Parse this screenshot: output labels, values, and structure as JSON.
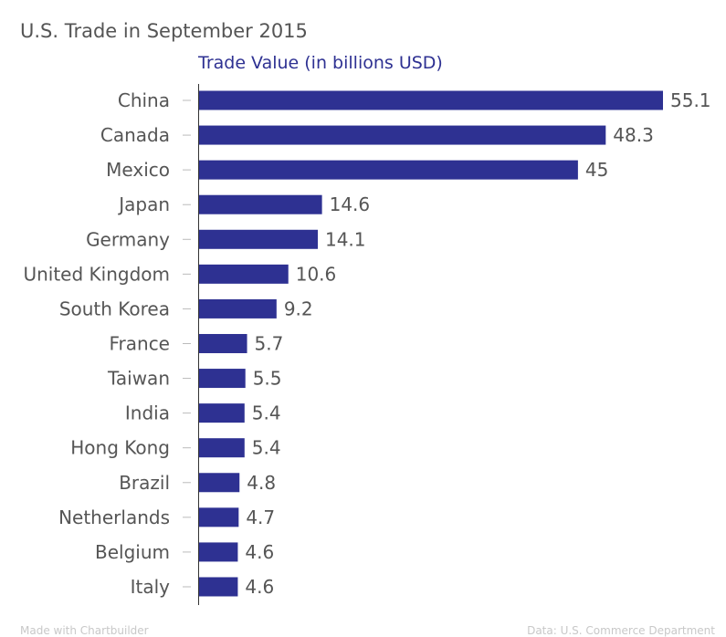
{
  "title": "U.S. Trade in September 2015",
  "subtitle": "Trade Value (in billions USD)",
  "footer_left": "Made with Chartbuilder",
  "footer_right": "Data: U.S. Commerce Department",
  "colors": {
    "bar": "#2e3192",
    "label": "#555555",
    "axis": "#333333",
    "tick": "#bbbbbb"
  },
  "chart_data": {
    "type": "bar",
    "orientation": "horizontal",
    "categories": [
      "China",
      "Canada",
      "Mexico",
      "Japan",
      "Germany",
      "United Kingdom",
      "South Korea",
      "France",
      "Taiwan",
      "India",
      "Hong Kong",
      "Brazil",
      "Netherlands",
      "Belgium",
      "Italy"
    ],
    "values": [
      55.1,
      48.3,
      45,
      14.6,
      14.1,
      10.6,
      9.2,
      5.7,
      5.5,
      5.4,
      5.4,
      4.8,
      4.7,
      4.6,
      4.6
    ],
    "value_labels": [
      "55.1",
      "48.3",
      "45",
      "14.6",
      "14.1",
      "10.6",
      "9.2",
      "5.7",
      "5.5",
      "5.4",
      "5.4",
      "4.8",
      "4.7",
      "4.6",
      "4.6"
    ],
    "title": "U.S. Trade in September 2015",
    "xlabel": "Trade Value (in billions USD)",
    "ylabel": "",
    "xlim": [
      0,
      55.1
    ],
    "grid": false,
    "legend": "none"
  }
}
